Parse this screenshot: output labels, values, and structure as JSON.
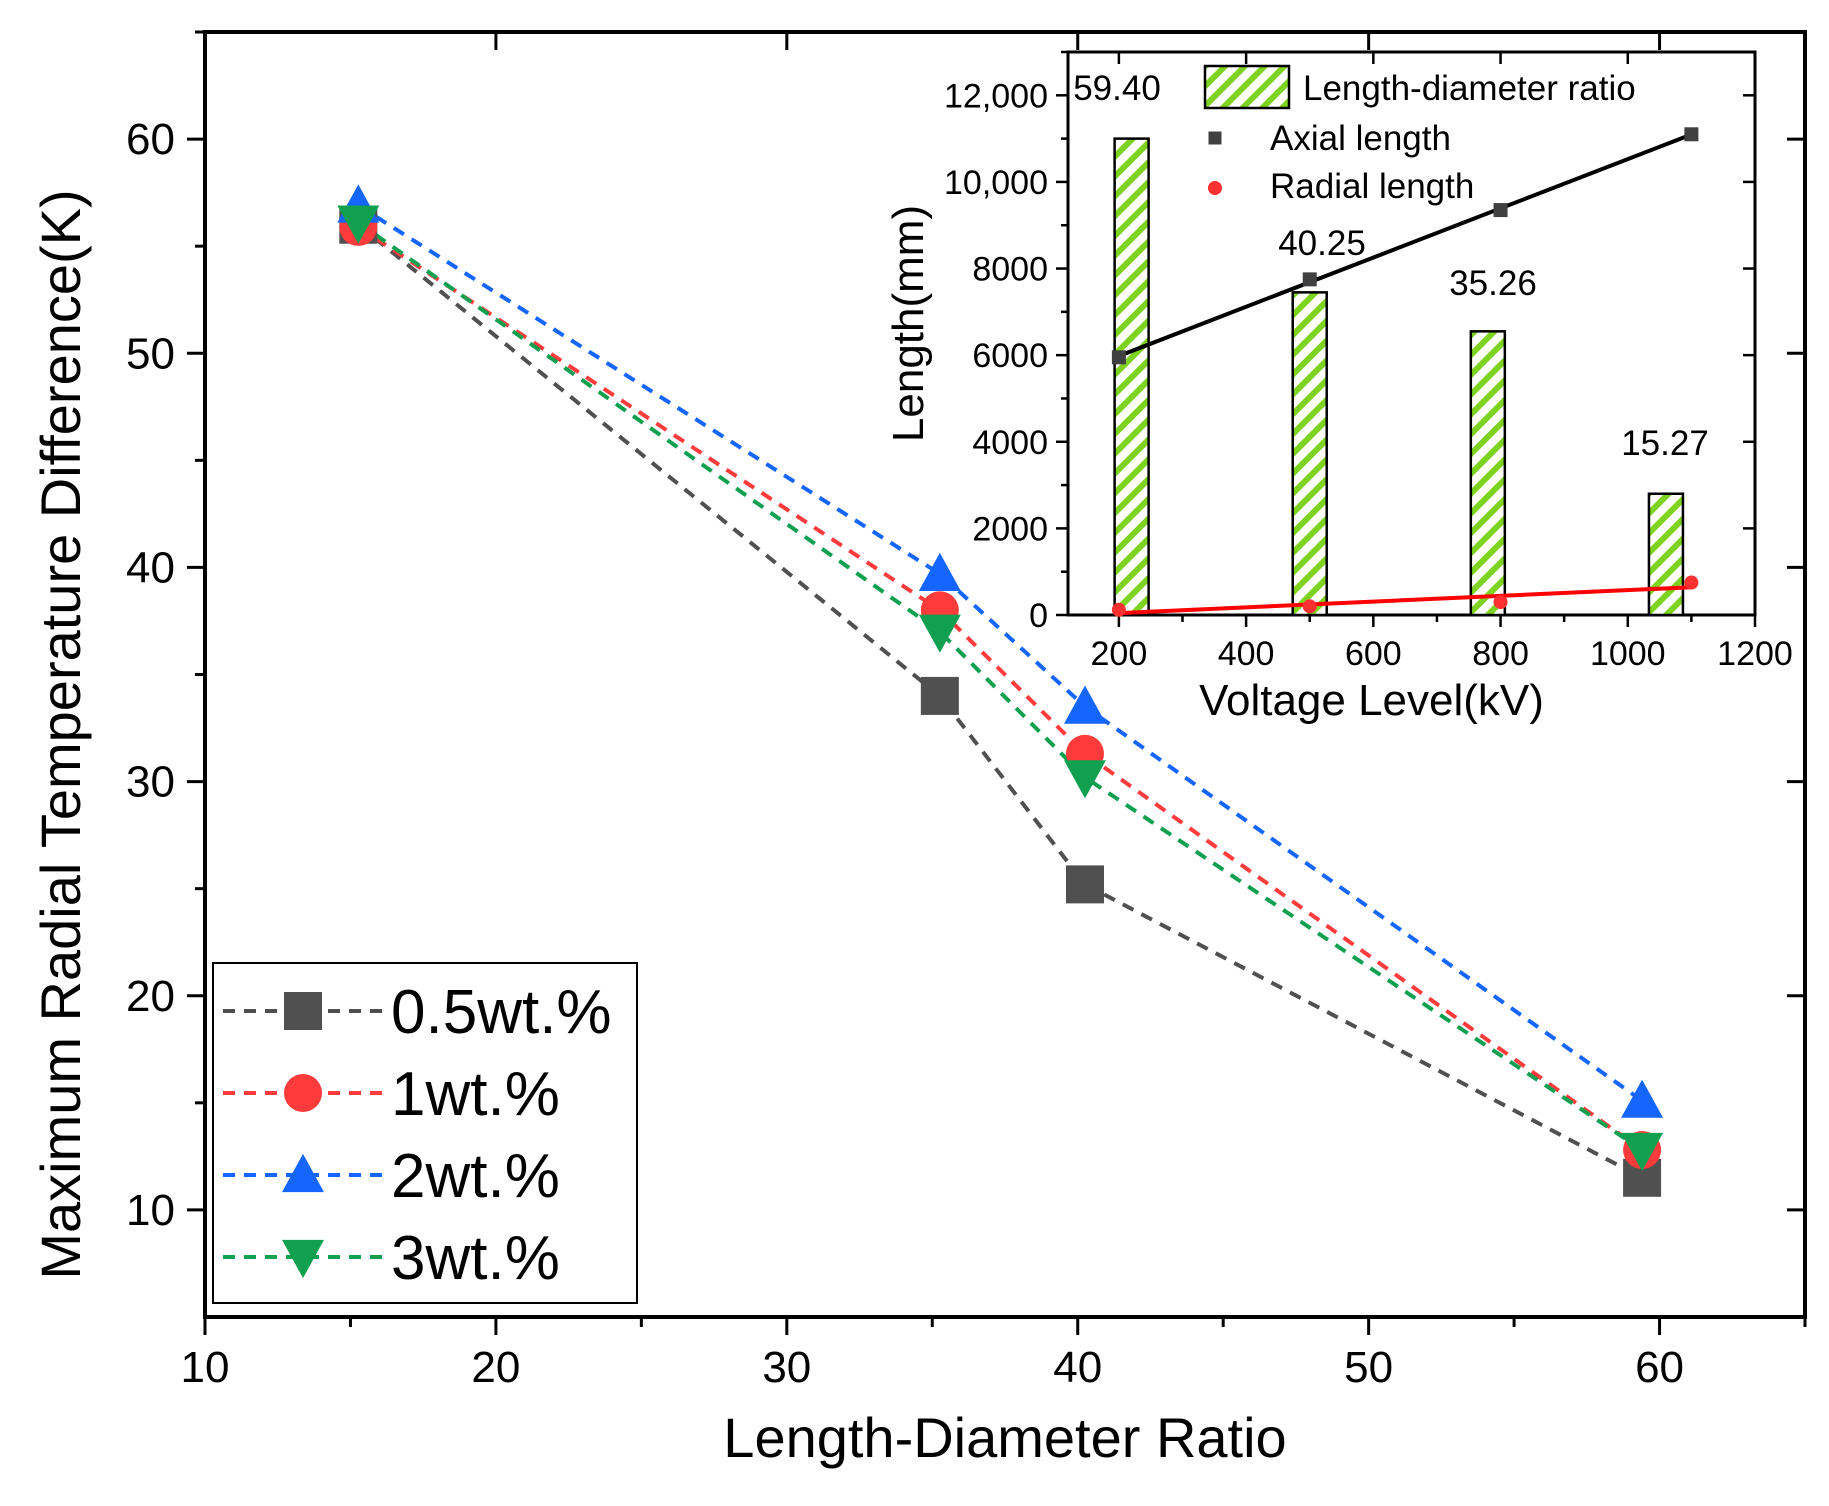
{
  "chart_data": [
    {
      "type": "line",
      "title": "",
      "xlabel": "Length-Diameter Ratio",
      "ylabel": "Maximum Radial Temperature Difference(K)",
      "xlim": [
        10,
        65
      ],
      "ylim": [
        5,
        65
      ],
      "xticks": [
        10,
        20,
        30,
        40,
        50,
        60
      ],
      "yticks": [
        10,
        20,
        30,
        40,
        50,
        60
      ],
      "x": [
        15.27,
        35.26,
        40.25,
        59.4
      ],
      "series": [
        {
          "name": "0.5wt.%",
          "marker": "square",
          "color": "#505050",
          "values": [
            56.0,
            34.0,
            25.2,
            11.5
          ]
        },
        {
          "name": "1wt.%",
          "marker": "circle",
          "color": "#ff3b3b",
          "values": [
            55.9,
            38.0,
            31.3,
            12.8
          ]
        },
        {
          "name": "2wt.%",
          "marker": "triangle-up",
          "color": "#1565ff",
          "values": [
            56.9,
            39.7,
            33.5,
            15.1
          ]
        },
        {
          "name": "3wt.%",
          "marker": "triangle-down",
          "color": "#10a050",
          "values": [
            56.1,
            37.0,
            30.2,
            12.8
          ]
        }
      ],
      "legend_position": "bottom-left"
    },
    {
      "type": "bar",
      "inset": true,
      "xlabel": "Voltage Level(kV)",
      "ylabel": "Length(mm)",
      "xlim": [
        120,
        1200
      ],
      "ylim": [
        0,
        13000
      ],
      "xticks": [
        200,
        400,
        600,
        800,
        1000,
        1200
      ],
      "xtick_labels": [
        "200",
        "400",
        "600",
        "800",
        "1000",
        "1200"
      ],
      "yticks": [
        0,
        2000,
        4000,
        6000,
        8000,
        10000,
        12000
      ],
      "ytick_labels": [
        "0",
        "2000",
        "4000",
        "6000",
        "8000",
        "10,000",
        "12,000"
      ],
      "bars": {
        "name": "Length-diameter ratio",
        "color": "#7ed321",
        "x": [
          220,
          500,
          780,
          1060
        ],
        "values": [
          11000,
          7450,
          6550,
          2800
        ],
        "labels": [
          "59.40",
          "40.25",
          "35.26",
          "15.27"
        ]
      },
      "series": [
        {
          "name": "Axial length",
          "marker": "square",
          "color": "#000000",
          "x": [
            200,
            500,
            800,
            1100
          ],
          "values": [
            5950,
            7750,
            9350,
            11100
          ]
        },
        {
          "name": "Radial length",
          "marker": "circle",
          "color": "#ff0000",
          "x": [
            200,
            500,
            800,
            1100
          ],
          "values": [
            120,
            200,
            300,
            750
          ]
        }
      ],
      "legend_position": "top-left"
    }
  ]
}
